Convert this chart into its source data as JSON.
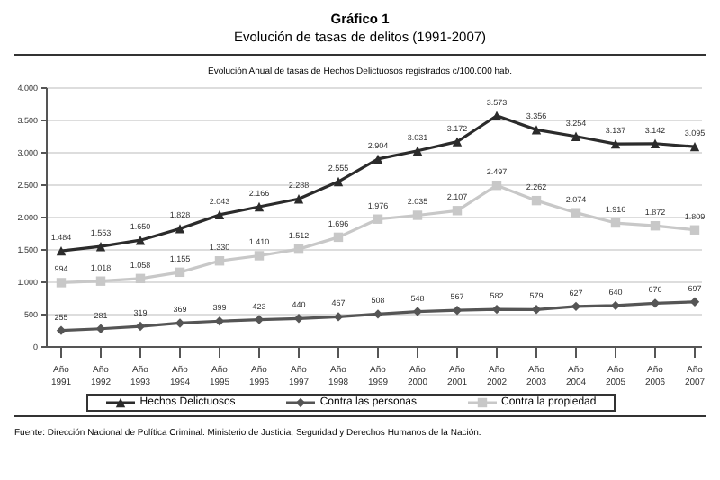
{
  "chart_data": {
    "type": "line",
    "title": "Gráfico 1",
    "subtitle": "Evolución de tasas de delitos (1991-2007)",
    "annotations": [
      "Evolución Anual de tasas de Hechos Delictuosos registrados c/100.000 hab.",
      "Fuente: Dirección Nacional de Política Criminal. Ministerio de Justicia, Seguridad y Derechos Humanos de la Nación."
    ],
    "categories": [
      "Año 1991",
      "Año 1992",
      "Año 1993",
      "Año 1994",
      "Año 1995",
      "Año 1996",
      "Año 1997",
      "Año 1998",
      "Año 1999",
      "Año 2000",
      "Año 2001",
      "Año 2002",
      "Año 2003",
      "Año 2004",
      "Año 2005",
      "Año 2006",
      "Año 2007"
    ],
    "series": [
      {
        "name": "Hechos Delictuosos",
        "color": "#2b2b2b",
        "marker": "triangle",
        "values": [
          1484,
          1553,
          1650,
          1828,
          2043,
          2166,
          2288,
          2555,
          2904,
          3031,
          3172,
          3573,
          3356,
          3254,
          3137,
          3142,
          3095
        ],
        "value_labels": [
          "1.484",
          "1.553",
          "1.650",
          "1.828",
          "2.043",
          "2.166",
          "2.288",
          "2.555",
          "2.904",
          "3.031",
          "3.172",
          "3.573",
          "3.356",
          "3.254",
          "3.137",
          "3.142",
          "3.095"
        ]
      },
      {
        "name": "Contra las personas",
        "color": "#555555",
        "marker": "diamond",
        "values": [
          255,
          281,
          319,
          369,
          399,
          423,
          440,
          467,
          508,
          548,
          567,
          582,
          579,
          627,
          640,
          676,
          697
        ],
        "value_labels": [
          "255",
          "281",
          "319",
          "369",
          "399",
          "423",
          "440",
          "467",
          "508",
          "548",
          "567",
          "582",
          "579",
          "627",
          "640",
          "676",
          "697"
        ]
      },
      {
        "name": "Contra la propiedad",
        "color": "#c8c8c8",
        "marker": "square",
        "values": [
          994,
          1018,
          1058,
          1155,
          1330,
          1410,
          1512,
          1696,
          1976,
          2035,
          2107,
          2497,
          2262,
          2074,
          1916,
          1872,
          1809
        ],
        "value_labels": [
          "994",
          "1.018",
          "1.058",
          "1.155",
          "1.330",
          "1.410",
          "1.512",
          "1.696",
          "1.976",
          "2.035",
          "2.107",
          "2.497",
          "2.262",
          "2.074",
          "1.916",
          "1.872",
          "1.809"
        ]
      }
    ],
    "ylim": [
      0,
      4000
    ],
    "yticks": [
      {
        "value": 0,
        "label": "0"
      },
      {
        "value": 500,
        "label": "500"
      },
      {
        "value": 1000,
        "label": "1.000"
      },
      {
        "value": 1500,
        "label": "1.500"
      },
      {
        "value": 2000,
        "label": "2.000"
      },
      {
        "value": 2500,
        "label": "2.500"
      },
      {
        "value": 3000,
        "label": "3.000"
      },
      {
        "value": 3500,
        "label": "3.500"
      },
      {
        "value": 4000,
        "label": "4.000"
      }
    ],
    "grid": "y",
    "legend": "bottom",
    "line_style": "solid"
  }
}
